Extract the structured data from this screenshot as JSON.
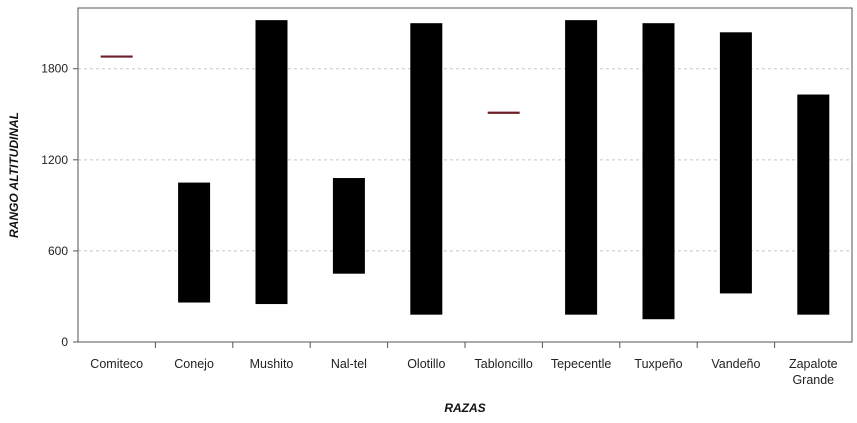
{
  "chart_data": {
    "type": "bar",
    "subtype": "floating-range",
    "title": "",
    "xlabel": "RAZAS",
    "ylabel": "RANGO ALTITUDINAL",
    "ylim": [
      0,
      2200
    ],
    "yticks": [
      0,
      600,
      1200,
      1800
    ],
    "grid": "horizontal-dashed",
    "bar_color": "#000000",
    "single_value_marker_color": "#6b1f2a",
    "categories": [
      {
        "label": [
          "Comiteco"
        ],
        "low": 1880,
        "high": 1880
      },
      {
        "label": [
          "Conejo"
        ],
        "low": 260,
        "high": 1050
      },
      {
        "label": [
          "Mushito"
        ],
        "low": 250,
        "high": 2120
      },
      {
        "label": [
          "Nal-tel"
        ],
        "low": 450,
        "high": 1080
      },
      {
        "label": [
          "Olotillo"
        ],
        "low": 180,
        "high": 2100
      },
      {
        "label": [
          "Tabloncillo"
        ],
        "low": 1510,
        "high": 1510
      },
      {
        "label": [
          "Tepecentle"
        ],
        "low": 180,
        "high": 2120
      },
      {
        "label": [
          "Tuxpeño"
        ],
        "low": 150,
        "high": 2100
      },
      {
        "label": [
          "Vandeño"
        ],
        "low": 320,
        "high": 2040
      },
      {
        "label": [
          "Zapalote",
          "Grande"
        ],
        "low": 180,
        "high": 1630
      }
    ]
  }
}
